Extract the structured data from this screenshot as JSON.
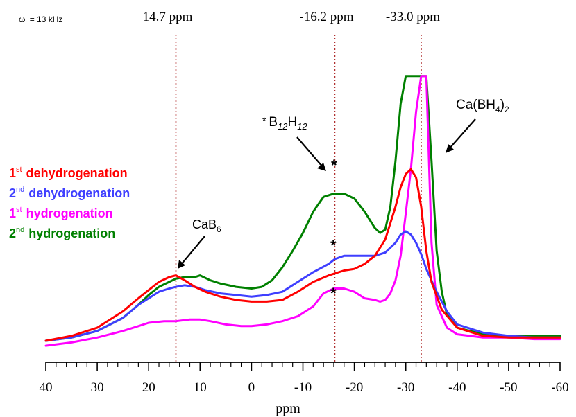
{
  "chart_data": {
    "type": "line",
    "title": "",
    "xlabel": "ppm",
    "ylabel": "",
    "xlim": [
      40,
      -60
    ],
    "x_ticks": [
      "40",
      "30",
      "20",
      "10",
      "0",
      "-10",
      "-20",
      "-30",
      "-40",
      "-50",
      "-60"
    ],
    "spin_rate": {
      "symbol": "ω",
      "sub": "r",
      "text": " = 13 kHz"
    },
    "reference_lines": [
      {
        "ppm": 14.7,
        "label": "14.7 ppm"
      },
      {
        "ppm": -16.2,
        "label": "-16.2 ppm"
      },
      {
        "ppm": -33.0,
        "label": "-33.0 ppm"
      }
    ],
    "series": [
      {
        "name_num": "1",
        "name_sup": "st",
        "name_text": "dehydrogenation",
        "color": "#ff0000",
        "x": [
          40,
          35,
          30,
          25,
          22,
          20,
          18,
          16,
          14.7,
          13,
          11,
          9,
          6,
          3,
          0,
          -3,
          -6,
          -9,
          -12,
          -15,
          -18,
          -20,
          -22,
          -24,
          -26,
          -27,
          -28,
          -29,
          -30,
          -31,
          -32,
          -33,
          -34,
          -35,
          -37,
          -40,
          -45,
          -50,
          -55,
          -60
        ],
        "y": [
          0.0,
          0.03,
          0.08,
          0.18,
          0.26,
          0.31,
          0.36,
          0.39,
          0.4,
          0.37,
          0.33,
          0.3,
          0.27,
          0.25,
          0.24,
          0.24,
          0.25,
          0.3,
          0.36,
          0.4,
          0.43,
          0.44,
          0.47,
          0.52,
          0.62,
          0.72,
          0.82,
          0.94,
          1.02,
          1.05,
          1.0,
          0.82,
          0.55,
          0.36,
          0.19,
          0.08,
          0.03,
          0.02,
          0.02,
          0.02
        ]
      },
      {
        "name_num": "2",
        "name_sup": "nd",
        "name_text": "dehydrogenation",
        "color": "#3f3fff",
        "x": [
          40,
          35,
          30,
          25,
          22,
          20,
          18,
          16,
          14.7,
          13,
          11,
          9,
          6,
          3,
          0,
          -3,
          -6,
          -9,
          -12,
          -15,
          -16.2,
          -18,
          -20,
          -22,
          -24,
          -26,
          -28,
          -29,
          -30,
          -31,
          -32,
          -33,
          -34,
          -36,
          -38,
          -40,
          -45,
          -50,
          -55,
          -60
        ],
        "y": [
          0.0,
          0.02,
          0.06,
          0.14,
          0.22,
          0.26,
          0.3,
          0.32,
          0.33,
          0.34,
          0.33,
          0.31,
          0.29,
          0.28,
          0.27,
          0.28,
          0.3,
          0.36,
          0.42,
          0.47,
          0.5,
          0.52,
          0.52,
          0.52,
          0.52,
          0.54,
          0.6,
          0.65,
          0.67,
          0.65,
          0.6,
          0.53,
          0.44,
          0.3,
          0.18,
          0.1,
          0.05,
          0.03,
          0.02,
          0.02
        ]
      },
      {
        "name_num": "1",
        "name_sup": "st",
        "name_text": "hydrogenation",
        "color": "#ff00ff",
        "x": [
          40,
          35,
          30,
          25,
          22,
          20,
          17,
          14.7,
          12,
          10,
          8,
          5,
          2,
          0,
          -3,
          -6,
          -9,
          -12,
          -14,
          -16,
          -18,
          -20,
          -22,
          -24,
          -25,
          -26,
          -27,
          -28,
          -29,
          -30,
          -31,
          -32,
          -33,
          -34,
          -35,
          -36,
          -38,
          -40,
          -45,
          -50,
          -55,
          -60
        ],
        "y": [
          -0.03,
          -0.01,
          0.02,
          0.06,
          0.09,
          0.11,
          0.12,
          0.12,
          0.13,
          0.13,
          0.12,
          0.1,
          0.09,
          0.09,
          0.1,
          0.12,
          0.15,
          0.21,
          0.29,
          0.32,
          0.32,
          0.3,
          0.26,
          0.25,
          0.24,
          0.25,
          0.29,
          0.37,
          0.52,
          0.78,
          1.05,
          1.4,
          1.62,
          1.62,
          0.6,
          0.22,
          0.08,
          0.04,
          0.02,
          0.02,
          0.01,
          0.01
        ]
      },
      {
        "name_num": "2",
        "name_sup": "nd",
        "name_text": "hydrogenation",
        "color": "#008000",
        "x": [
          40,
          35,
          30,
          25,
          22,
          20,
          18,
          16,
          14.7,
          13,
          11,
          10,
          8,
          6,
          3,
          0,
          -2,
          -4,
          -6,
          -8,
          -10,
          -12,
          -14,
          -16,
          -18,
          -20,
          -22,
          -24,
          -25,
          -26,
          -27,
          -28,
          -29,
          -30,
          -31,
          -32,
          -33,
          -34,
          -35,
          -36,
          -37,
          -38,
          -40,
          -45,
          -50,
          -55,
          -60
        ],
        "y": [
          0.0,
          0.02,
          0.06,
          0.14,
          0.22,
          0.28,
          0.33,
          0.36,
          0.38,
          0.39,
          0.39,
          0.4,
          0.37,
          0.35,
          0.33,
          0.32,
          0.33,
          0.37,
          0.45,
          0.55,
          0.66,
          0.79,
          0.88,
          0.9,
          0.9,
          0.87,
          0.79,
          0.69,
          0.66,
          0.68,
          0.82,
          1.1,
          1.45,
          1.62,
          1.62,
          1.62,
          1.62,
          1.62,
          1.1,
          0.55,
          0.3,
          0.16,
          0.08,
          0.04,
          0.03,
          0.03,
          0.03
        ]
      }
    ],
    "annotations": [
      {
        "id": "cab6",
        "main": "CaB",
        "sub": "6"
      },
      {
        "id": "b12h12",
        "pre": "* ",
        "main1": "B",
        "sub1": "12",
        "main2": "H",
        "sub2": "12"
      },
      {
        "id": "cabh4",
        "main1": "Ca(BH",
        "sub1": "4",
        "main2": ")",
        "sub2": "2"
      }
    ],
    "peak_markers": "*",
    "grid": false,
    "legend_placement": "left"
  }
}
